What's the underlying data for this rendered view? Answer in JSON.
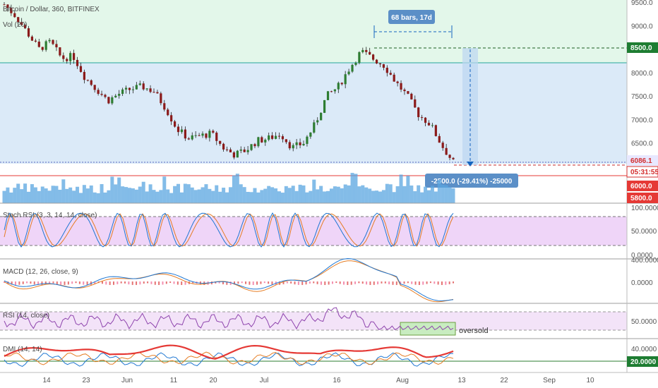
{
  "header": {
    "symbol_line": "Bitcoin / Dollar, 360, BITFINEX",
    "volume_label": "Vol (20)"
  },
  "measure": {
    "bars_label": "68 bars, 17d",
    "change_label": "-2500.0 (-29.41%) -25000"
  },
  "price_axis": {
    "ticks": [
      "9500.0",
      "9000.0",
      "8500.0",
      "8000.0",
      "7500.0",
      "7000.0",
      "6500.0",
      "6000.0",
      "5800.0"
    ],
    "tags": [
      {
        "text": "8500.0",
        "bg": "#1e7d32"
      },
      {
        "text": "6086.1",
        "bg": "#e8e8ff",
        "fg": "#d32f2f"
      },
      {
        "text": "05:31:55",
        "bg": "#ffffff",
        "fg": "#d32f2f"
      },
      {
        "text": "6000.0",
        "bg": "#e53935"
      },
      {
        "text": "5800.0",
        "bg": "#e53935"
      }
    ]
  },
  "panes": {
    "stoch": {
      "label": "Stoch RSI (3, 3, 14, 14, close)",
      "ticks": [
        "100.0000",
        "50.0000",
        "0.0000"
      ]
    },
    "macd": {
      "label": "MACD (12, 26, close, 9)",
      "ticks": [
        "400.0000",
        "0.0000"
      ]
    },
    "rsi": {
      "label": "RSI (14, close)",
      "ticks": [
        "50.0000"
      ],
      "annotation": "oversold"
    },
    "dmi": {
      "label": "DMI (14, 14)",
      "ticks": [
        "40.0000",
        "20.0000"
      ]
    }
  },
  "time_axis": [
    "14",
    "23",
    "Jun",
    "11",
    "20",
    "Jul",
    "16",
    "Aug",
    "13",
    "22",
    "Sep",
    "10"
  ],
  "colors": {
    "green_zone": "#e3f7ea",
    "blue_zone": "#dbeaf8",
    "purple_zone": "#efd5f8",
    "candle_up": "#2e7d32",
    "candle_down": "#8b1a1a",
    "volume": "#5aa6e0",
    "stoch_k": "#1f77d2",
    "stoch_d": "#e57c23",
    "rsi_line": "#8e44ad",
    "dmi_adx": "#e53935"
  },
  "chart_data": {
    "type": "line",
    "symbol": "Bitcoin / Dollar, 360, BITFINEX",
    "x_labels": [
      "14",
      "23",
      "Jun",
      "11",
      "20",
      "Jul",
      "16",
      "Aug",
      "13",
      "22",
      "Sep",
      "10"
    ],
    "close_series": [
      9450,
      9200,
      8850,
      8500,
      8650,
      8300,
      8350,
      7900,
      7650,
      7400,
      7550,
      7650,
      7700,
      7600,
      7250,
      6800,
      6600,
      6650,
      6700,
      6400,
      6250,
      6350,
      6550,
      6600,
      6700,
      6400,
      6500,
      6900,
      7500,
      7700,
      8100,
      8450,
      8300,
      8150,
      7800,
      7500,
      7100,
      6900,
      6450,
      6086
    ],
    "ylim": [
      5800,
      9600
    ],
    "price_levels": [
      8500,
      8200,
      6086.1,
      6000
    ],
    "indicators": {
      "stoch_rsi_levels": [
        80,
        20
      ],
      "rsi_levels": [
        70,
        30
      ],
      "dmi_level": 20
    }
  }
}
